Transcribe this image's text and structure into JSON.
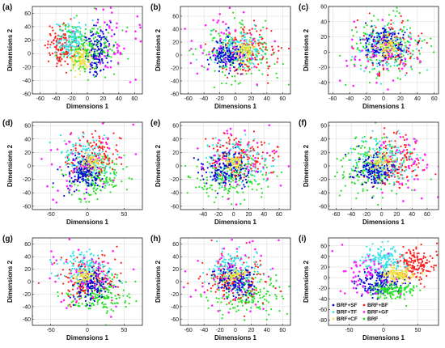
{
  "chart_data": [
    {
      "panel": "(a)",
      "type": "scatter",
      "xlabel": "Dimensions 1",
      "ylabel": "Dimensions 2",
      "xlim": [
        -70,
        70
      ],
      "ylim": [
        -60,
        70
      ],
      "xticks": [
        -60,
        -40,
        -20,
        0,
        20,
        40,
        60
      ],
      "yticks": [
        -60,
        -40,
        -20,
        0,
        20,
        40,
        60
      ],
      "series": [
        {
          "color": "#ff1a1a",
          "clusters": [
            {
              "cx": -35,
              "cy": 10,
              "rx": 15,
              "ry": 28,
              "n": 120
            }
          ]
        },
        {
          "color": "#33e0e8",
          "clusters": [
            {
              "cx": -20,
              "cy": 20,
              "rx": 18,
              "ry": 22,
              "n": 140
            }
          ]
        },
        {
          "color": "#0a0ad8",
          "clusters": [
            {
              "cx": 12,
              "cy": 5,
              "rx": 16,
              "ry": 32,
              "n": 160
            }
          ]
        },
        {
          "color": "#f0e04a",
          "clusters": [
            {
              "cx": -8,
              "cy": -5,
              "rx": 12,
              "ry": 18,
              "n": 120
            }
          ]
        },
        {
          "color": "#22e022",
          "clusters": [
            {
              "cx": 0,
              "cy": 10,
              "rx": 38,
              "ry": 38,
              "n": 140
            }
          ]
        },
        {
          "color": "#ff22ff",
          "clusters": [
            {
              "cx": 35,
              "cy": 15,
              "rx": 35,
              "ry": 45,
              "n": 45
            }
          ]
        }
      ]
    },
    {
      "panel": "(b)",
      "type": "scatter",
      "xlabel": "Dimensions 1",
      "ylabel": "Dimensions 2",
      "xlim": [
        -70,
        70
      ],
      "ylim": [
        -60,
        75
      ],
      "xticks": [
        -60,
        -40,
        -20,
        0,
        20,
        40,
        60
      ],
      "yticks": [
        -60,
        -40,
        -20,
        0,
        20,
        40,
        60
      ],
      "series": [
        {
          "color": "#22e022",
          "clusters": [
            {
              "cx": 0,
              "cy": 0,
              "rx": 42,
              "ry": 40,
              "n": 170
            }
          ]
        },
        {
          "color": "#ff1a1a",
          "clusters": [
            {
              "cx": 15,
              "cy": 5,
              "rx": 35,
              "ry": 35,
              "n": 130
            }
          ]
        },
        {
          "color": "#33e0e8",
          "clusters": [
            {
              "cx": 5,
              "cy": 10,
              "rx": 30,
              "ry": 25,
              "n": 140
            }
          ]
        },
        {
          "color": "#0a0ad8",
          "clusters": [
            {
              "cx": -10,
              "cy": 0,
              "rx": 22,
              "ry": 22,
              "n": 140
            }
          ]
        },
        {
          "color": "#f0e04a",
          "clusters": [
            {
              "cx": 12,
              "cy": 5,
              "rx": 12,
              "ry": 14,
              "n": 90
            }
          ]
        },
        {
          "color": "#ff22ff",
          "clusters": [
            {
              "cx": -20,
              "cy": 20,
              "rx": 45,
              "ry": 50,
              "n": 50
            }
          ]
        }
      ]
    },
    {
      "panel": "(c)",
      "type": "scatter",
      "xlabel": "Dimensions 1",
      "ylabel": "Dimensions 2",
      "xlim": [
        -65,
        65
      ],
      "ylim": [
        -55,
        60
      ],
      "xticks": [
        -60,
        -40,
        -20,
        0,
        20,
        40,
        60
      ],
      "yticks": [
        -40,
        -20,
        0,
        20,
        40,
        60
      ],
      "series": [
        {
          "color": "#22e022",
          "clusters": [
            {
              "cx": 5,
              "cy": 10,
              "rx": 42,
              "ry": 38,
              "n": 170
            }
          ]
        },
        {
          "color": "#ff1a1a",
          "clusters": [
            {
              "cx": 10,
              "cy": 5,
              "rx": 30,
              "ry": 30,
              "n": 110
            }
          ]
        },
        {
          "color": "#33e0e8",
          "clusters": [
            {
              "cx": 5,
              "cy": 5,
              "rx": 30,
              "ry": 26,
              "n": 130
            }
          ]
        },
        {
          "color": "#0a0ad8",
          "clusters": [
            {
              "cx": 0,
              "cy": 10,
              "rx": 24,
              "ry": 22,
              "n": 150
            }
          ]
        },
        {
          "color": "#f0e04a",
          "clusters": [
            {
              "cx": 5,
              "cy": 8,
              "rx": 12,
              "ry": 12,
              "n": 80
            }
          ]
        },
        {
          "color": "#ff22ff",
          "clusters": [
            {
              "cx": -5,
              "cy": -10,
              "rx": 50,
              "ry": 45,
              "n": 50
            }
          ]
        }
      ]
    },
    {
      "panel": "(d)",
      "type": "scatter",
      "xlabel": "Dimensions 1",
      "ylabel": "Dimensions 2",
      "xlim": [
        -75,
        75
      ],
      "ylim": [
        -65,
        65
      ],
      "xticks": [
        -50,
        0,
        50
      ],
      "yticks": [
        -60,
        -40,
        -20,
        0,
        20,
        40,
        60
      ],
      "series": [
        {
          "color": "#22e022",
          "clusters": [
            {
              "cx": 10,
              "cy": -15,
              "rx": 38,
              "ry": 30,
              "n": 170
            }
          ]
        },
        {
          "color": "#ff1a1a",
          "clusters": [
            {
              "cx": 10,
              "cy": 15,
              "rx": 38,
              "ry": 30,
              "n": 140
            }
          ]
        },
        {
          "color": "#33e0e8",
          "clusters": [
            {
              "cx": 0,
              "cy": 10,
              "rx": 30,
              "ry": 28,
              "n": 130
            }
          ]
        },
        {
          "color": "#0a0ad8",
          "clusters": [
            {
              "cx": -5,
              "cy": -10,
              "rx": 22,
              "ry": 22,
              "n": 150
            }
          ]
        },
        {
          "color": "#f0e04a",
          "clusters": [
            {
              "cx": 5,
              "cy": 5,
              "rx": 12,
              "ry": 10,
              "n": 60
            }
          ]
        },
        {
          "color": "#ff22ff",
          "clusters": [
            {
              "cx": -10,
              "cy": 5,
              "rx": 65,
              "ry": 55,
              "n": 45
            }
          ]
        }
      ]
    },
    {
      "panel": "(e)",
      "type": "scatter",
      "xlabel": "Dimensions 1",
      "ylabel": "Dimensions 2",
      "xlim": [
        -70,
        75
      ],
      "ylim": [
        -65,
        65
      ],
      "xticks": [
        -40,
        -20,
        0,
        20,
        40,
        60
      ],
      "yticks": [
        -60,
        -40,
        -20,
        0,
        20,
        40,
        60
      ],
      "series": [
        {
          "color": "#22e022",
          "clusters": [
            {
              "cx": -5,
              "cy": -20,
              "rx": 45,
              "ry": 30,
              "n": 180
            }
          ]
        },
        {
          "color": "#ff1a1a",
          "clusters": [
            {
              "cx": 10,
              "cy": 15,
              "rx": 40,
              "ry": 30,
              "n": 150
            }
          ]
        },
        {
          "color": "#33e0e8",
          "clusters": [
            {
              "cx": 0,
              "cy": 10,
              "rx": 35,
              "ry": 30,
              "n": 130
            }
          ]
        },
        {
          "color": "#0a0ad8",
          "clusters": [
            {
              "cx": -10,
              "cy": -5,
              "rx": 28,
              "ry": 22,
              "n": 150
            }
          ]
        },
        {
          "color": "#f0e04a",
          "clusters": [
            {
              "cx": 0,
              "cy": 5,
              "rx": 14,
              "ry": 10,
              "n": 60
            }
          ]
        },
        {
          "color": "#ff22ff",
          "clusters": [
            {
              "cx": 10,
              "cy": 5,
              "rx": 60,
              "ry": 55,
              "n": 45
            }
          ]
        }
      ]
    },
    {
      "panel": "(f)",
      "type": "scatter",
      "xlabel": "Dimensions 1",
      "ylabel": "Dimensions 2",
      "xlim": [
        -70,
        75
      ],
      "ylim": [
        -65,
        65
      ],
      "xticks": [
        -60,
        -40,
        -20,
        0,
        20,
        40,
        60
      ],
      "yticks": [
        -60,
        -40,
        -20,
        0,
        20,
        40,
        60
      ],
      "series": [
        {
          "color": "#22e022",
          "clusters": [
            {
              "cx": -15,
              "cy": 0,
              "rx": 45,
              "ry": 40,
              "n": 180
            }
          ]
        },
        {
          "color": "#ff1a1a",
          "clusters": [
            {
              "cx": 20,
              "cy": 5,
              "rx": 30,
              "ry": 35,
              "n": 140
            }
          ]
        },
        {
          "color": "#33e0e8",
          "clusters": [
            {
              "cx": 0,
              "cy": 10,
              "rx": 35,
              "ry": 30,
              "n": 140
            }
          ]
        },
        {
          "color": "#0a0ad8",
          "clusters": [
            {
              "cx": -10,
              "cy": -5,
              "rx": 22,
              "ry": 22,
              "n": 140
            }
          ]
        },
        {
          "color": "#f0e04a",
          "clusters": [
            {
              "cx": 0,
              "cy": 5,
              "rx": 12,
              "ry": 10,
              "n": 60
            }
          ]
        },
        {
          "color": "#ff22ff",
          "clusters": [
            {
              "cx": 35,
              "cy": 5,
              "rx": 35,
              "ry": 50,
              "n": 45
            }
          ]
        }
      ]
    },
    {
      "panel": "(g)",
      "type": "scatter",
      "xlabel": "Dimensions 1",
      "ylabel": "Dimensions 2",
      "xlim": [
        -75,
        75
      ],
      "ylim": [
        -70,
        70
      ],
      "xticks": [
        -50,
        0,
        50
      ],
      "yticks": [
        -60,
        -40,
        -20,
        0,
        20,
        40,
        60
      ],
      "series": [
        {
          "color": "#22e022",
          "clusters": [
            {
              "cx": 15,
              "cy": -20,
              "rx": 40,
              "ry": 30,
              "n": 180
            }
          ]
        },
        {
          "color": "#ff1a1a",
          "clusters": [
            {
              "cx": 0,
              "cy": 5,
              "rx": 35,
              "ry": 35,
              "n": 140
            }
          ]
        },
        {
          "color": "#33e0e8",
          "clusters": [
            {
              "cx": -5,
              "cy": 20,
              "rx": 30,
              "ry": 25,
              "n": 140
            }
          ]
        },
        {
          "color": "#0a0ad8",
          "clusters": [
            {
              "cx": 5,
              "cy": -5,
              "rx": 22,
              "ry": 22,
              "n": 140
            }
          ]
        },
        {
          "color": "#f0e04a",
          "clusters": [
            {
              "cx": -5,
              "cy": 10,
              "rx": 12,
              "ry": 10,
              "n": 60
            }
          ]
        },
        {
          "color": "#ff22ff",
          "clusters": [
            {
              "cx": -10,
              "cy": 10,
              "rx": 60,
              "ry": 60,
              "n": 50
            }
          ]
        }
      ]
    },
    {
      "panel": "(h)",
      "type": "scatter",
      "xlabel": "Dimensions 1",
      "ylabel": "Dimensions 2",
      "xlim": [
        -70,
        70
      ],
      "ylim": [
        -70,
        70
      ],
      "xticks": [
        -60,
        -40,
        -20,
        0,
        20,
        40,
        60
      ],
      "yticks": [
        -60,
        -40,
        -20,
        0,
        20,
        40,
        60
      ],
      "series": [
        {
          "color": "#22e022",
          "clusters": [
            {
              "cx": 15,
              "cy": -20,
              "rx": 40,
              "ry": 30,
              "n": 180
            }
          ]
        },
        {
          "color": "#ff1a1a",
          "clusters": [
            {
              "cx": 0,
              "cy": 5,
              "rx": 35,
              "ry": 35,
              "n": 140
            }
          ]
        },
        {
          "color": "#33e0e8",
          "clusters": [
            {
              "cx": 0,
              "cy": 20,
              "rx": 28,
              "ry": 28,
              "n": 140
            }
          ]
        },
        {
          "color": "#0a0ad8",
          "clusters": [
            {
              "cx": 0,
              "cy": 0,
              "rx": 22,
              "ry": 22,
              "n": 140
            }
          ]
        },
        {
          "color": "#f0e04a",
          "clusters": [
            {
              "cx": 0,
              "cy": 10,
              "rx": 12,
              "ry": 10,
              "n": 60
            }
          ]
        },
        {
          "color": "#ff22ff",
          "clusters": [
            {
              "cx": -10,
              "cy": 10,
              "rx": 55,
              "ry": 60,
              "n": 50
            }
          ]
        }
      ]
    },
    {
      "panel": "(i)",
      "type": "scatter",
      "xlabel": "Dimensions 1",
      "ylabel": "Dimensions 2",
      "xlim": [
        -80,
        80
      ],
      "ylim": [
        -90,
        75
      ],
      "xticks": [
        -50,
        0,
        50
      ],
      "yticks": [
        -80,
        -60,
        -40,
        -20,
        0,
        20,
        40,
        60
      ],
      "legend": {
        "placement": "bottom-left",
        "entries": [
          {
            "label": "BRF+SF",
            "color": "#0a0ad8"
          },
          {
            "label": "BRF+BF",
            "color": "#ff1a1a"
          },
          {
            "label": "BRF+TF",
            "color": "#33e0e8"
          },
          {
            "label": "BRF+GF",
            "color": "#ff22ff"
          },
          {
            "label": "BRF+CF",
            "color": "#f0e04a"
          },
          {
            "label": "BRF",
            "color": "#22e022"
          }
        ]
      },
      "series": [
        {
          "color": "#ff1a1a",
          "clusters": [
            {
              "cx": 45,
              "cy": 25,
              "rx": 25,
              "ry": 30,
              "n": 150
            }
          ]
        },
        {
          "color": "#33e0e8",
          "clusters": [
            {
              "cx": 0,
              "cy": 30,
              "rx": 25,
              "ry": 25,
              "n": 160
            }
          ]
        },
        {
          "color": "#0a0ad8",
          "clusters": [
            {
              "cx": -5,
              "cy": -10,
              "rx": 30,
              "ry": 20,
              "n": 170
            }
          ]
        },
        {
          "color": "#f0e04a",
          "clusters": [
            {
              "cx": 20,
              "cy": 5,
              "rx": 22,
              "ry": 12,
              "n": 140
            }
          ]
        },
        {
          "color": "#22e022",
          "clusters": [
            {
              "cx": 10,
              "cy": -25,
              "rx": 30,
              "ry": 15,
              "n": 130
            }
          ]
        },
        {
          "color": "#ff22ff",
          "clusters": [
            {
              "cx": -30,
              "cy": 5,
              "rx": 35,
              "ry": 45,
              "n": 55
            }
          ]
        }
      ]
    }
  ]
}
